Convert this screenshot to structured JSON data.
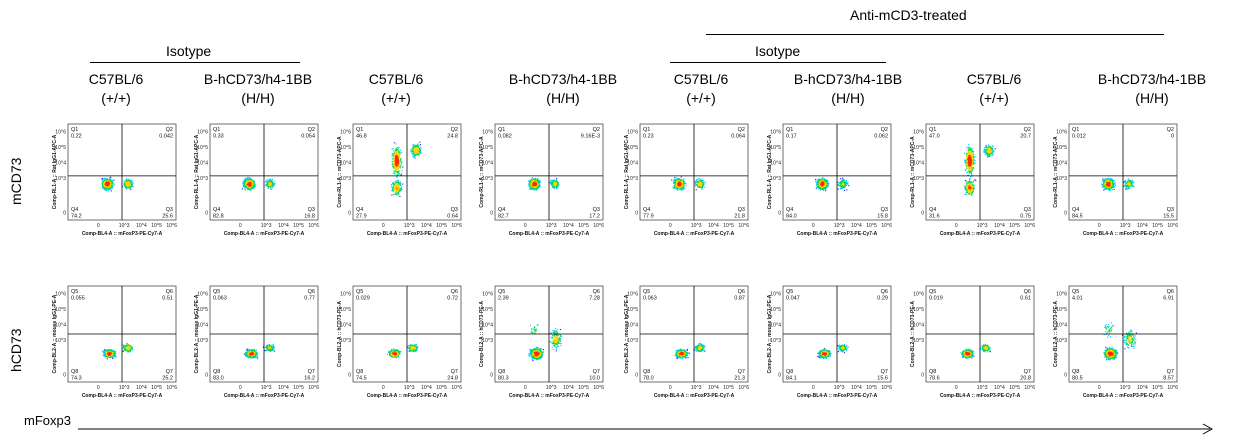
{
  "headers": {
    "treated_group": "Anti-mCD3-treated",
    "isotype_left": "Isotype",
    "isotype_right": "Isotype",
    "columns": [
      {
        "strain": "C57BL/6",
        "genotype": "(+/+)"
      },
      {
        "strain": "B-hCD73/h4-1BB",
        "genotype": "(H/H)"
      },
      {
        "strain": "C57BL/6",
        "genotype": "(+/+)"
      },
      {
        "strain": "B-hCD73/h4-1BB",
        "genotype": "(H/H)"
      },
      {
        "strain": "C57BL/6",
        "genotype": "(+/+)"
      },
      {
        "strain": "B-hCD73/h4-1BB",
        "genotype": "(H/H)"
      },
      {
        "strain": "C57BL/6",
        "genotype": "(+/+)"
      },
      {
        "strain": "B-hCD73/h4-1BB",
        "genotype": "(H/H)"
      }
    ]
  },
  "row_labels": [
    "mCD73",
    "hCD73"
  ],
  "x_axis_label": "mFoxp3",
  "colors": {
    "dot_low": "#1a1aff",
    "dot_mid": "#00c8ff",
    "dot_high": "#00d84a",
    "dot_peak": "#ffd200",
    "dot_max": "#ff2a00",
    "frame": "#333333"
  },
  "chart_data": {
    "type": "scatter",
    "plot_kind": "flow cytometry dot plot (density colored)",
    "x_scale": "log (biexponential)",
    "y_scale": "log (biexponential)",
    "x_ticks": [
      "0",
      "10^3",
      "10^4",
      "10^5",
      "10^6"
    ],
    "y_ticks": [
      "0",
      "10^3",
      "10^4",
      "10^5",
      "10^6"
    ],
    "quadrant_labels_row1": [
      "Q1",
      "Q2",
      "Q3",
      "Q4"
    ],
    "quadrant_labels_row2": [
      "Q5",
      "Q6",
      "Q7",
      "Q8"
    ],
    "rows": [
      {
        "x_axis_title": "Comp-BL4-A :: mFoxP3-PE-Cy7-A",
        "panels": [
          {
            "y_axis_title": "Comp-RL1-A :: Rat IgG1-APC-A",
            "q": [
              "0.22",
              "0.042",
              "25.6",
              "74.2"
            ],
            "pattern": "two_low"
          },
          {
            "y_axis_title": "Comp-RL1-A :: Rat IgG1-APC-A",
            "q": [
              "0.33",
              "0.054",
              "16.8",
              "82.8"
            ],
            "pattern": "two_low"
          },
          {
            "y_axis_title": "Comp-RL1-A :: mCD73-APC-A",
            "q": [
              "46.8",
              "24.8",
              "0.64",
              "27.9"
            ],
            "pattern": "mcd73_pos"
          },
          {
            "y_axis_title": "Comp-RL1-A :: mCD73-APC-A",
            "q": [
              "0.082",
              "9.16E-3",
              "17.2",
              "82.7"
            ],
            "pattern": "two_low"
          },
          {
            "y_axis_title": "Comp-RL1-A :: Rat IgG1-APC-A",
            "q": [
              "0.23",
              "0.064",
              "21.8",
              "77.9"
            ],
            "pattern": "two_low"
          },
          {
            "y_axis_title": "Comp-RL1-A :: Rat IgG1-APC-A",
            "q": [
              "0.17",
              "0.062",
              "15.8",
              "84.0"
            ],
            "pattern": "two_low"
          },
          {
            "y_axis_title": "Comp-RL1-A :: mCD73-APC-A",
            "q": [
              "47.0",
              "20.7",
              "0.75",
              "31.6"
            ],
            "pattern": "mcd73_pos"
          },
          {
            "y_axis_title": "Comp-RL1-A :: mCD73-APC-A",
            "q": [
              "0.012",
              "0",
              "15.5",
              "84.5"
            ],
            "pattern": "two_low"
          }
        ]
      },
      {
        "x_axis_title": "Comp-BL4-A :: mFoxP3-PE-Cy7-A",
        "panels": [
          {
            "y_axis_title": "Comp-BL2-A :: mouse IgG1-PE-A",
            "q": [
              "0.055",
              "0.51",
              "25.2",
              "74.3"
            ],
            "pattern": "diag"
          },
          {
            "y_axis_title": "Comp-BL2-A :: mouse IgG1-PE-A",
            "q": [
              "0.063",
              "0.77",
              "16.2",
              "83.0"
            ],
            "pattern": "diag"
          },
          {
            "y_axis_title": "Comp-BL2-A :: hCD73-PE-A",
            "q": [
              "0.029",
              "0.72",
              "24.8",
              "74.5"
            ],
            "pattern": "diag"
          },
          {
            "y_axis_title": "Comp-BL2-A :: hCD73-PE-A",
            "q": [
              "2.39",
              "7.28",
              "10.0",
              "80.3"
            ],
            "pattern": "hcd73_pos"
          },
          {
            "y_axis_title": "Comp-BL2-A :: mouse IgG1-PE-A",
            "q": [
              "0.063",
              "0.87",
              "21.3",
              "78.0"
            ],
            "pattern": "diag"
          },
          {
            "y_axis_title": "Comp-BL2-A :: mouse IgG1-PE-A",
            "q": [
              "0.047",
              "0.29",
              "15.6",
              "84.1"
            ],
            "pattern": "diag"
          },
          {
            "y_axis_title": "Comp-BL2-A :: hCD73-PE-A",
            "q": [
              "0.019",
              "0.61",
              "20.8",
              "78.6"
            ],
            "pattern": "diag"
          },
          {
            "y_axis_title": "Comp-BL2-A :: hCD73-PE-A",
            "q": [
              "4.01",
              "6.91",
              "8.57",
              "80.5"
            ],
            "pattern": "hcd73_pos"
          }
        ]
      }
    ]
  }
}
